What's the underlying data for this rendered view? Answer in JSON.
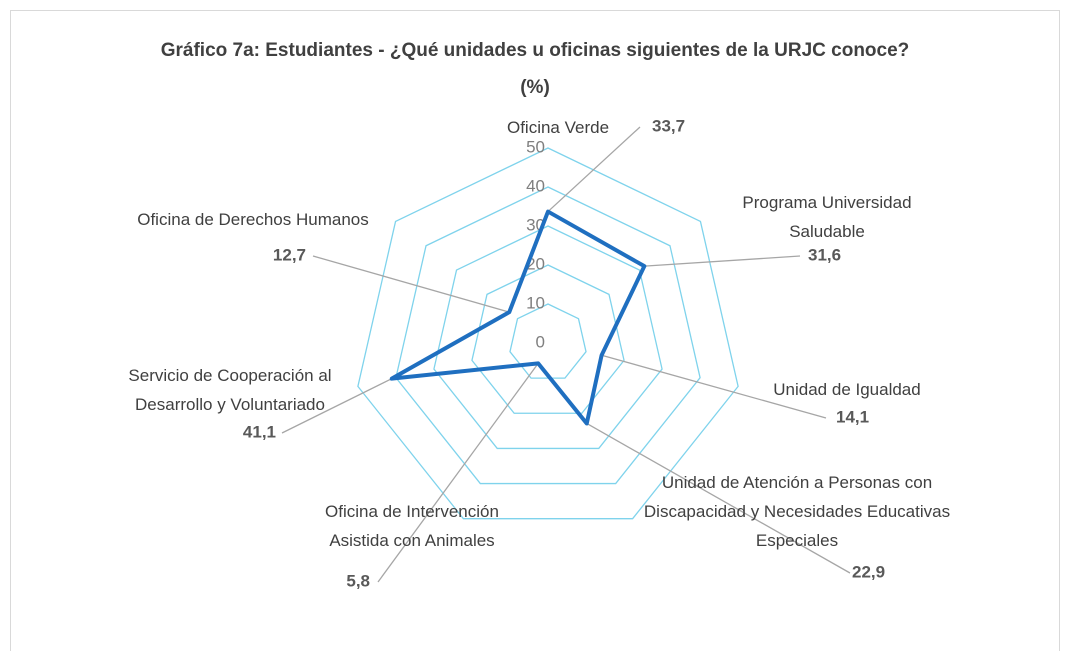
{
  "chart_data": {
    "type": "radar",
    "title": "Gráfico 7a: Estudiantes - ¿Qué unidades u oficinas siguientes de la URJC conoce? (%)",
    "categories": [
      "Oficina Verde",
      "Programa Universidad Saludable",
      "Unidad de Igualdad",
      "Unidad de Atención a Personas con Discapacidad y Necesidades Educativas Especiales",
      "Oficina de Intervención Asistida con Animales",
      "Servicio de Cooperación al Desarrollo y Voluntariado",
      "Oficina de Derechos Humanos"
    ],
    "values": [
      33.7,
      31.6,
      14.1,
      22.9,
      5.8,
      41.1,
      12.7
    ],
    "value_labels": [
      "33,7",
      "31,6",
      "14,1",
      "22,9",
      "5,8",
      "41,1",
      "12,7"
    ],
    "color": "#1f6fc0",
    "grid_color": "#7fd3ec",
    "ylim": [
      0,
      50
    ],
    "yticks": [
      0,
      10,
      20,
      30,
      40,
      50
    ],
    "grid": true
  }
}
